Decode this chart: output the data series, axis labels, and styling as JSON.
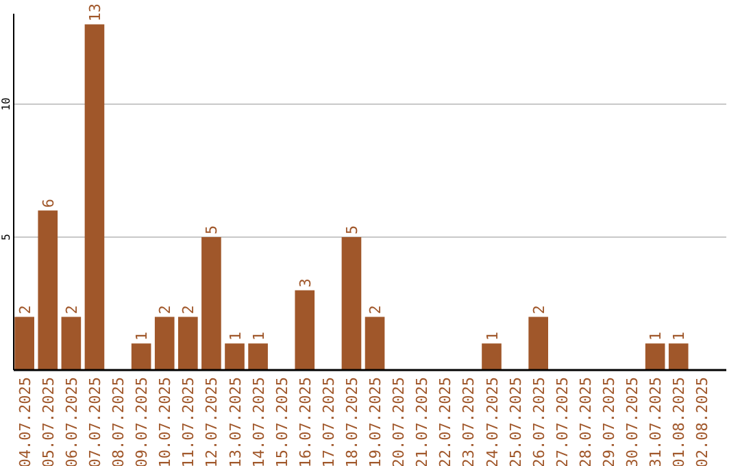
{
  "chart_data": {
    "type": "bar",
    "categories": [
      "04.07.2025",
      "05.07.2025",
      "06.07.2025",
      "07.07.2025",
      "08.07.2025",
      "09.07.2025",
      "10.07.2025",
      "11.07.2025",
      "12.07.2025",
      "13.07.2025",
      "14.07.2025",
      "15.07.2025",
      "16.07.2025",
      "17.07.2025",
      "18.07.2025",
      "19.07.2025",
      "20.07.2025",
      "21.07.2025",
      "22.07.2025",
      "23.07.2025",
      "24.07.2025",
      "25.07.2025",
      "26.07.2025",
      "27.07.2025",
      "28.07.2025",
      "29.07.2025",
      "30.07.2025",
      "31.07.2025",
      "01.08.2025",
      "02.08.2025"
    ],
    "values": [
      2,
      6,
      2,
      13,
      0,
      1,
      2,
      2,
      5,
      1,
      1,
      0,
      3,
      0,
      5,
      2,
      0,
      0,
      0,
      0,
      1,
      0,
      2,
      0,
      0,
      0,
      0,
      1,
      1,
      0
    ],
    "value_labels": [
      "2",
      "6",
      "2",
      "13",
      null,
      "1",
      "2",
      "2",
      "5",
      "1",
      "1",
      null,
      "3",
      null,
      "5",
      "2",
      null,
      null,
      null,
      null,
      "1",
      null,
      "2",
      null,
      null,
      null,
      null,
      "1",
      "1",
      null
    ],
    "color": "#a0572a",
    "ylim": [
      0,
      13.4
    ],
    "yticks": [
      5,
      10
    ],
    "grid": "y"
  }
}
